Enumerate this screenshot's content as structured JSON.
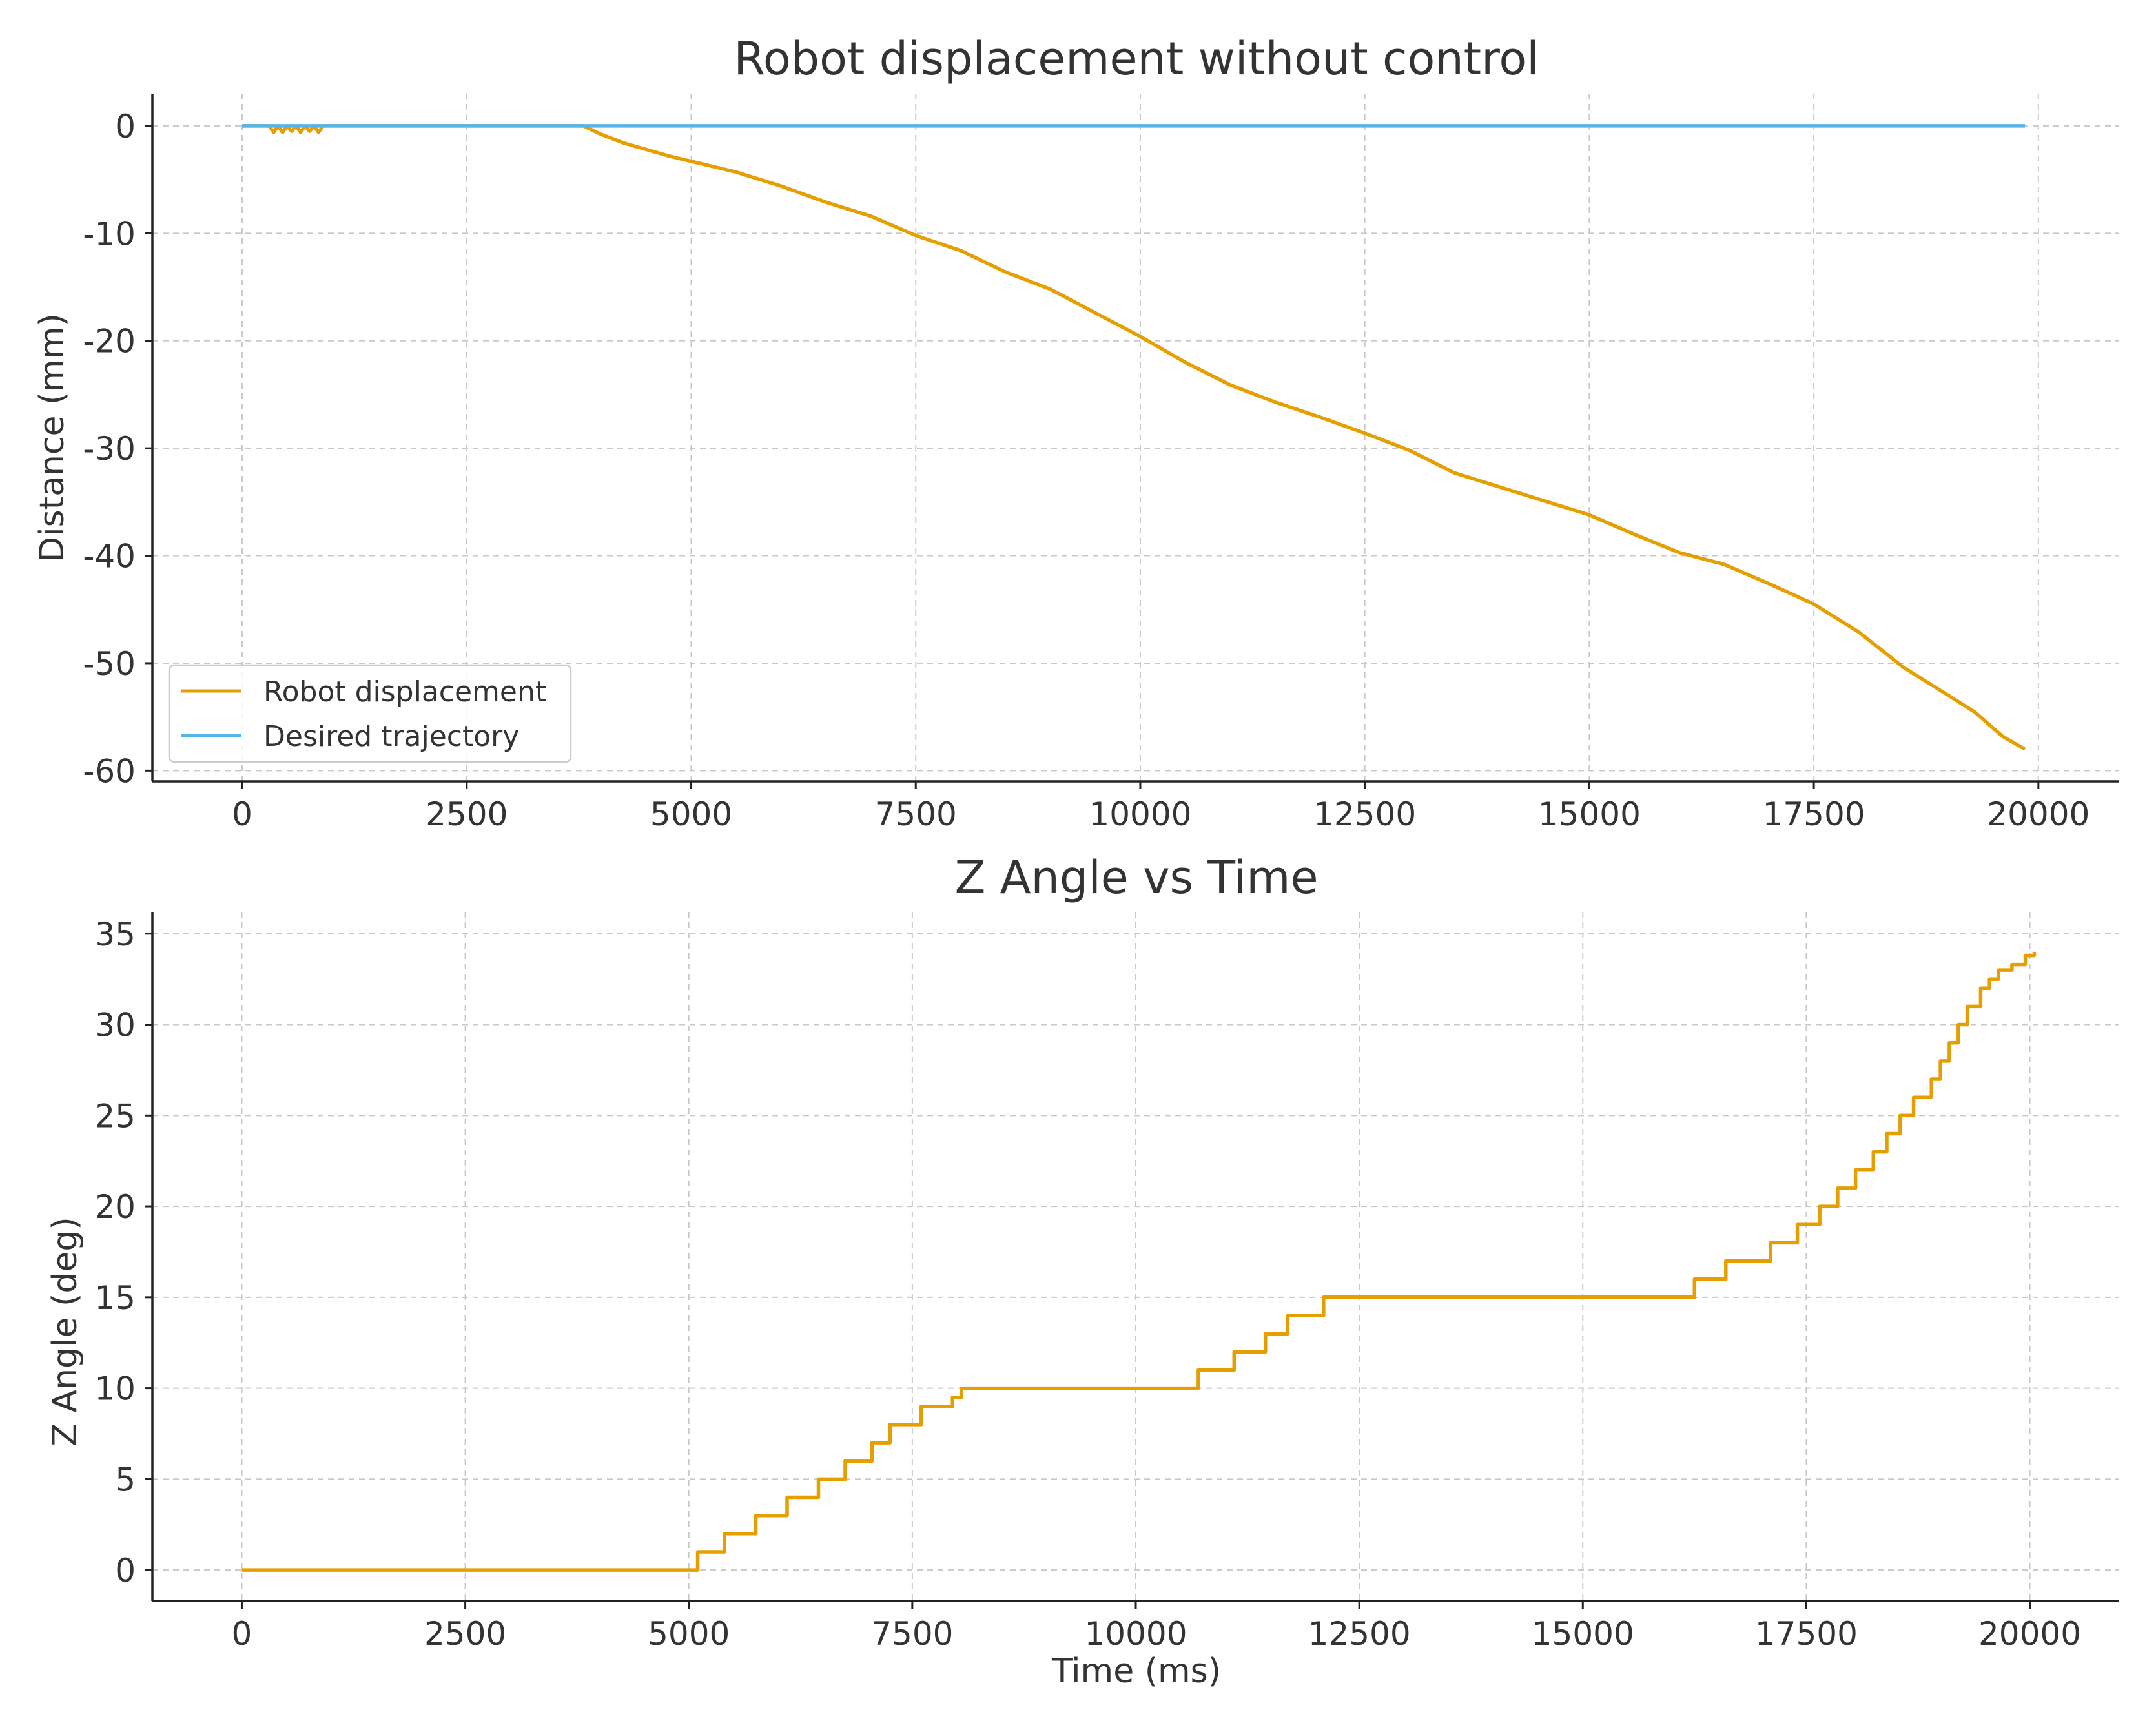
{
  "chart_data": [
    {
      "type": "line",
      "title": "Robot displacement without control",
      "xlabel": "",
      "ylabel": "Distance (mm)",
      "xlim": [
        -1000,
        20900
      ],
      "ylim": [
        -61,
        3
      ],
      "x_ticks": [
        0,
        2500,
        5000,
        7500,
        10000,
        12500,
        15000,
        17500,
        20000
      ],
      "y_ticks": [
        0,
        -10,
        -20,
        -30,
        -40,
        -50,
        -60
      ],
      "grid": true,
      "legend": "lower-left",
      "series": [
        {
          "name": "Robot displacement",
          "color": "#E69F00",
          "x": [
            0,
            300,
            350,
            400,
            450,
            500,
            550,
            600,
            650,
            700,
            750,
            800,
            850,
            900,
            1000,
            2000,
            3000,
            3800,
            4000,
            4250,
            4500,
            4750,
            5000,
            5500,
            6000,
            6500,
            7000,
            7500,
            8000,
            8500,
            9000,
            9500,
            10000,
            10500,
            11000,
            11500,
            12000,
            12500,
            13000,
            13500,
            14000,
            14500,
            15000,
            15500,
            16000,
            16500,
            17000,
            17500,
            18000,
            18500,
            19000,
            19300,
            19600,
            19850
          ],
          "y": [
            0,
            0,
            -0.6,
            0,
            -0.6,
            0,
            -0.5,
            0,
            -0.6,
            0,
            -0.5,
            0,
            -0.6,
            0,
            0,
            0,
            0,
            0,
            -0.8,
            -1.6,
            -2.2,
            -2.8,
            -3.3,
            -4.3,
            -5.6,
            -7.1,
            -8.4,
            -10.2,
            -11.6,
            -13.6,
            -15.2,
            -17.4,
            -19.6,
            -22.0,
            -24.1,
            -25.7,
            -27.1,
            -28.6,
            -30.2,
            -32.3,
            -33.6,
            -34.9,
            -36.2,
            -38.0,
            -39.7,
            -40.8,
            -42.6,
            -44.5,
            -47.1,
            -50.4,
            -53.0,
            -54.6,
            -56.8,
            -58.0
          ]
        },
        {
          "name": "Desired trajectory",
          "color": "#56B4E9",
          "x": [
            0,
            19850
          ],
          "y": [
            0,
            0
          ]
        }
      ]
    },
    {
      "type": "line",
      "title": "Z Angle vs Time",
      "xlabel": "Time (ms)",
      "ylabel": "Z Angle (deg)",
      "xlim": [
        -1000,
        21000
      ],
      "ylim": [
        -1.7,
        36.2
      ],
      "x_ticks": [
        0,
        2500,
        5000,
        7500,
        10000,
        12500,
        15000,
        17500,
        20000
      ],
      "y_ticks": [
        0,
        5,
        10,
        15,
        20,
        25,
        30,
        35
      ],
      "grid": true,
      "series": [
        {
          "name": "",
          "color": "#E69F00",
          "x": [
            0,
            5100,
            5400,
            5750,
            6100,
            6450,
            6750,
            7050,
            7250,
            7600,
            7950,
            8050,
            10700,
            11100,
            11450,
            11700,
            12100,
            16250,
            16600,
            17100,
            17400,
            17650,
            17850,
            18050,
            18250,
            18400,
            18550,
            18700,
            18900,
            19000,
            19100,
            19200,
            19300,
            19450,
            19550,
            19650,
            19800,
            19950,
            20050
          ],
          "y": [
            0,
            1,
            2,
            3,
            4,
            5,
            6,
            7,
            8,
            9,
            9.5,
            10,
            11,
            12,
            13,
            14,
            15,
            16,
            17,
            18,
            19,
            20,
            21,
            22,
            23,
            24,
            25,
            26,
            27,
            28,
            29,
            30,
            31,
            32,
            32.5,
            33,
            33.3,
            33.8,
            34
          ]
        }
      ]
    }
  ]
}
